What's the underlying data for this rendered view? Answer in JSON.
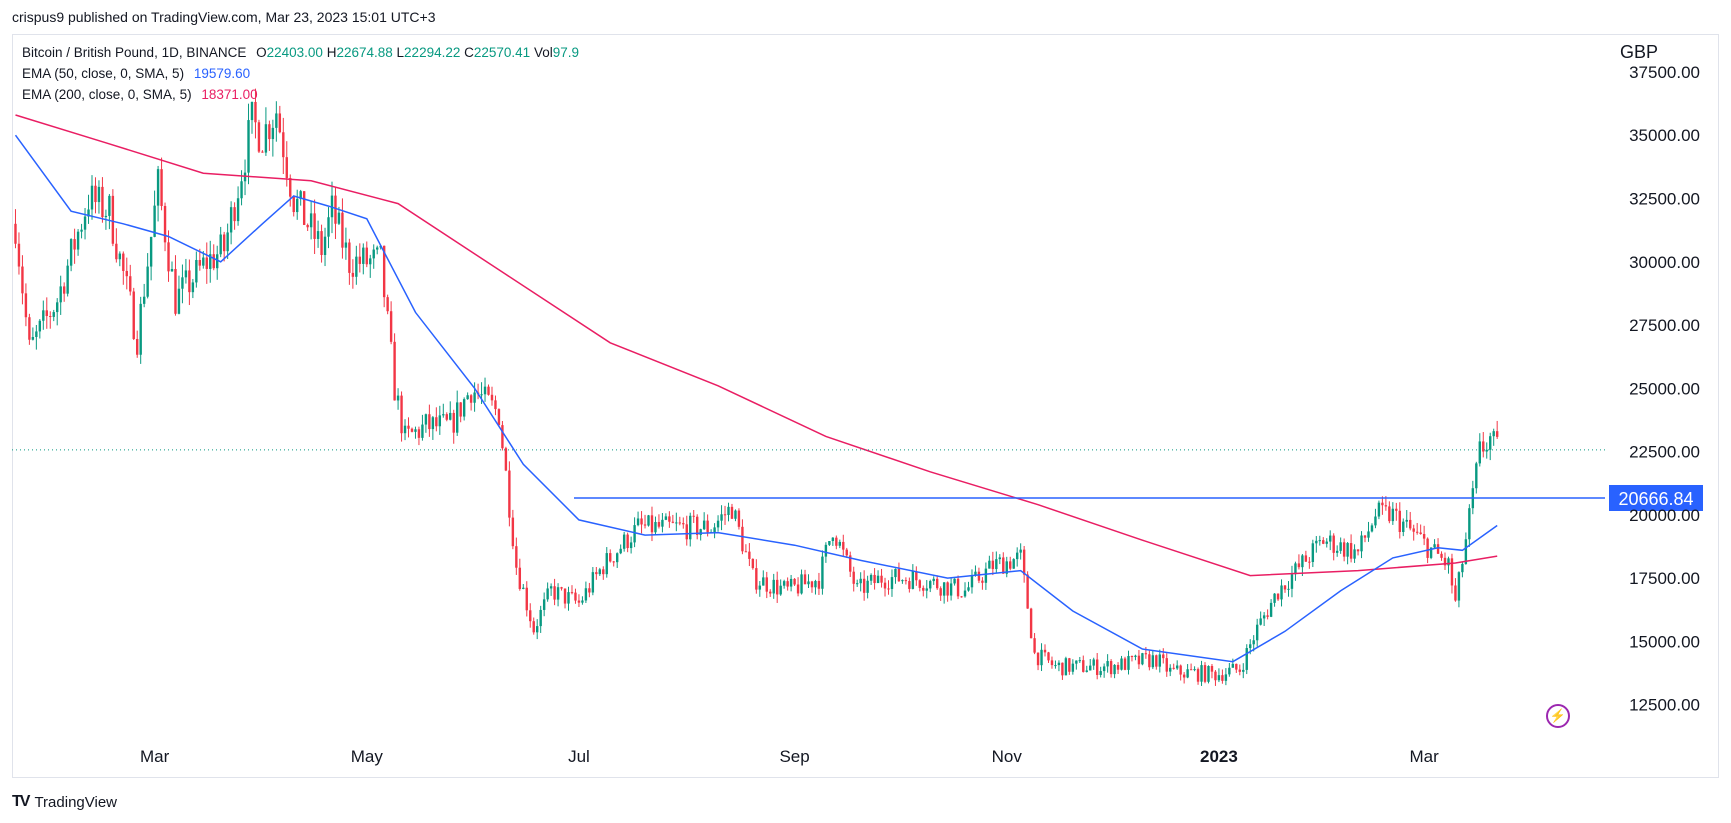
{
  "header": {
    "published_line": "crispus9 published on TradingView.com, Mar 23, 2023 15:01 UTC+3"
  },
  "legend": {
    "symbol": "Bitcoin / British Pound, 1D, BINANCE",
    "open_label": "O",
    "open": "22403.00",
    "high_label": "H",
    "high": "22674.88",
    "low_label": "L",
    "low": "22294.22",
    "close_label": "C",
    "close": "22570.41",
    "vol_label": "Vol",
    "vol": "97.9",
    "ema50_label": "EMA (50, close, 0, SMA, 5)",
    "ema50_value": "19579.60",
    "ema200_label": "EMA (200, close, 0, SMA, 5)",
    "ema200_value": "18371.00"
  },
  "currency": "GBP",
  "footer": {
    "brand": "TradingView"
  },
  "colors": {
    "up": "#089981",
    "down": "#f23645",
    "ema50": "#2962ff",
    "ema200": "#e91e63",
    "hline": "#2962ff",
    "hline_label_bg": "#2962ff"
  },
  "chart_data": {
    "type": "candlestick",
    "ylim": [
      11500,
      39000
    ],
    "yticks": [
      "12500.00",
      "15000.00",
      "17500.00",
      "20000.00",
      "22500.00",
      "25000.00",
      "27500.00",
      "30000.00",
      "32500.00",
      "35000.00",
      "37500.00"
    ],
    "xticks": [
      "Mar",
      "May",
      "Jul",
      "Sep",
      "Nov",
      "2023",
      "Mar"
    ],
    "horizontal_line": {
      "value": 20666.84,
      "label": "20666.84"
    },
    "last_price_line": 22570.41,
    "waypoints_close": [
      [
        "2022-01-20",
        31500
      ],
      [
        "2022-01-24",
        26500
      ],
      [
        "2022-02-01",
        28500
      ],
      [
        "2022-02-10",
        32500
      ],
      [
        "2022-02-16",
        32000
      ],
      [
        "2022-02-24",
        27000
      ],
      [
        "2022-03-02",
        33000
      ],
      [
        "2022-03-07",
        28500
      ],
      [
        "2022-03-16",
        30000
      ],
      [
        "2022-03-21",
        30500
      ],
      [
        "2022-03-29",
        35500
      ],
      [
        "2022-04-01",
        35000
      ],
      [
        "2022-04-05",
        36000
      ],
      [
        "2022-04-10",
        32500
      ],
      [
        "2022-04-18",
        30500
      ],
      [
        "2022-04-21",
        32000
      ],
      [
        "2022-04-26",
        30000
      ],
      [
        "2022-05-05",
        30000
      ],
      [
        "2022-05-09",
        25000
      ],
      [
        "2022-05-12",
        23000
      ],
      [
        "2022-05-18",
        23500
      ],
      [
        "2022-05-25",
        23500
      ],
      [
        "2022-05-31",
        25000
      ],
      [
        "2022-06-08",
        24000
      ],
      [
        "2022-06-13",
        18000
      ],
      [
        "2022-06-18",
        15500
      ],
      [
        "2022-06-23",
        17000
      ],
      [
        "2022-07-01",
        16500
      ],
      [
        "2022-07-08",
        18000
      ],
      [
        "2022-07-18",
        19500
      ],
      [
        "2022-07-28",
        19500
      ],
      [
        "2022-08-08",
        19500
      ],
      [
        "2022-08-14",
        20300
      ],
      [
        "2022-08-20",
        17500
      ],
      [
        "2022-08-30",
        17000
      ],
      [
        "2022-09-08",
        17500
      ],
      [
        "2022-09-12",
        19500
      ],
      [
        "2022-09-19",
        17000
      ],
      [
        "2022-09-26",
        17500
      ],
      [
        "2022-10-05",
        17500
      ],
      [
        "2022-10-20",
        17000
      ],
      [
        "2022-10-28",
        18000
      ],
      [
        "2022-11-05",
        18300
      ],
      [
        "2022-11-09",
        14500
      ],
      [
        "2022-11-15",
        14000
      ],
      [
        "2022-11-30",
        14000
      ],
      [
        "2022-12-14",
        14300
      ],
      [
        "2022-12-18",
        13800
      ],
      [
        "2022-12-31",
        13700
      ],
      [
        "2023-01-07",
        13900
      ],
      [
        "2023-01-12",
        15500
      ],
      [
        "2023-01-18",
        17000
      ],
      [
        "2023-01-31",
        19000
      ],
      [
        "2023-02-10",
        18500
      ],
      [
        "2023-02-15",
        20000
      ],
      [
        "2023-02-20",
        20000
      ],
      [
        "2023-02-28",
        19000
      ],
      [
        "2023-03-08",
        18000
      ],
      [
        "2023-03-10",
        16500
      ],
      [
        "2023-03-13",
        19000
      ],
      [
        "2023-03-17",
        22500
      ],
      [
        "2023-03-20",
        23000
      ],
      [
        "2023-03-22",
        22570
      ]
    ],
    "ema50_waypoints": [
      [
        "2022-01-20",
        35000
      ],
      [
        "2022-02-05",
        32000
      ],
      [
        "2022-02-20",
        31500
      ],
      [
        "2022-03-05",
        31000
      ],
      [
        "2022-03-20",
        30000
      ],
      [
        "2022-04-01",
        31500
      ],
      [
        "2022-04-10",
        32600
      ],
      [
        "2022-04-20",
        32200
      ],
      [
        "2022-05-01",
        31700
      ],
      [
        "2022-05-15",
        28000
      ],
      [
        "2022-06-01",
        25000
      ],
      [
        "2022-06-15",
        22000
      ],
      [
        "2022-07-01",
        19800
      ],
      [
        "2022-07-20",
        19200
      ],
      [
        "2022-08-10",
        19300
      ],
      [
        "2022-09-01",
        18800
      ],
      [
        "2022-09-20",
        18200
      ],
      [
        "2022-10-15",
        17500
      ],
      [
        "2022-11-05",
        17800
      ],
      [
        "2022-11-20",
        16200
      ],
      [
        "2022-12-10",
        14700
      ],
      [
        "2023-01-05",
        14200
      ],
      [
        "2023-01-20",
        15400
      ],
      [
        "2023-02-05",
        17000
      ],
      [
        "2023-02-20",
        18300
      ],
      [
        "2023-03-05",
        18700
      ],
      [
        "2023-03-12",
        18600
      ],
      [
        "2023-03-22",
        19580
      ]
    ],
    "ema200_waypoints": [
      [
        "2022-01-20",
        35800
      ],
      [
        "2022-02-15",
        34700
      ],
      [
        "2022-03-15",
        33500
      ],
      [
        "2022-04-15",
        33200
      ],
      [
        "2022-05-10",
        32300
      ],
      [
        "2022-06-10",
        29500
      ],
      [
        "2022-07-10",
        26800
      ],
      [
        "2022-08-10",
        25100
      ],
      [
        "2022-09-10",
        23100
      ],
      [
        "2022-10-10",
        21700
      ],
      [
        "2022-11-10",
        20400
      ],
      [
        "2022-12-10",
        19000
      ],
      [
        "2023-01-10",
        17600
      ],
      [
        "2023-02-10",
        17800
      ],
      [
        "2023-03-10",
        18100
      ],
      [
        "2023-03-22",
        18371
      ]
    ]
  }
}
